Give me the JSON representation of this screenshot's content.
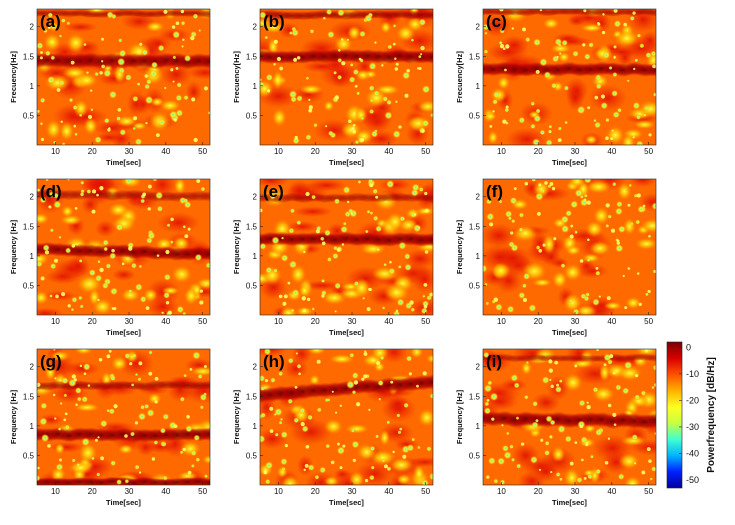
{
  "chart_data": {
    "type": "heatmap",
    "xlabel": "Time[sec]",
    "xlim": [
      5,
      52
    ],
    "xticks": [
      10,
      20,
      30,
      40,
      50
    ],
    "ylim": [
      0,
      2.3
    ],
    "yticks": [
      0.5,
      1,
      1.5,
      2
    ],
    "ytick_labels": [
      "0.5",
      "1",
      "1.5",
      "2"
    ],
    "colorbar": {
      "label": "Powerfrequency [dB/Hz]",
      "range": [
        -53,
        2
      ],
      "ticks": [
        0,
        -10,
        -20,
        -30,
        -40,
        -50
      ],
      "colors": [
        "#0000a0",
        "#0020ff",
        "#00b4ff",
        "#40ffd0",
        "#c8ff40",
        "#ffff20",
        "#ffb000",
        "#ff5000",
        "#d80000",
        "#7a0000"
      ]
    },
    "panels": [
      {
        "label": "(a)",
        "ylabel": "Frecuency[Hz]",
        "xlabel": "Time[sec]",
        "bands": [
          {
            "f_start": 1.42,
            "f_end": 1.42,
            "width": 0.1,
            "strength": 1.0
          },
          {
            "f_start": 2.22,
            "f_end": 2.22,
            "width": 0.05,
            "strength": 0.6
          }
        ]
      },
      {
        "label": "(b)",
        "ylabel": "Frecuency[Hz]",
        "xlabel": "Time[sec]",
        "bands": [
          {
            "f_start": 1.5,
            "f_end": 1.5,
            "width": 0.09,
            "strength": 1.0
          },
          {
            "f_start": 2.2,
            "f_end": 2.2,
            "width": 0.06,
            "strength": 0.7
          }
        ]
      },
      {
        "label": "(c)",
        "ylabel": "Frecuency[Hz]",
        "xlabel": "Time[sec]",
        "bands": [
          {
            "f_start": 1.28,
            "f_end": 1.28,
            "width": 0.09,
            "strength": 1.0
          },
          {
            "f_start": 2.25,
            "f_end": 2.25,
            "width": 0.05,
            "strength": 0.6
          }
        ]
      },
      {
        "label": "(d)",
        "ylabel": "Frequency [Hz]",
        "xlabel": "Time[sec]",
        "bands": [
          {
            "f_start": 1.12,
            "f_end": 1.02,
            "width": 0.09,
            "strength": 1.0
          },
          {
            "f_start": 2.05,
            "f_end": 2.0,
            "width": 0.07,
            "strength": 0.55
          }
        ]
      },
      {
        "label": "(e)",
        "ylabel": "Frequency [Hz]",
        "xlabel": "Time[sec]",
        "bands": [
          {
            "f_start": 1.28,
            "f_end": 1.28,
            "width": 0.09,
            "strength": 1.0
          },
          {
            "f_start": 1.98,
            "f_end": 1.98,
            "width": 0.06,
            "strength": 0.55
          }
        ]
      },
      {
        "label": "(f)",
        "ylabel": "Frequency [Hz]",
        "xlabel": "Time[sec]",
        "bands": []
      },
      {
        "label": "(g)",
        "ylabel": "Frequency [Hz]",
        "xlabel": "Time[sec]",
        "bands": [
          {
            "f_start": 0.85,
            "f_end": 0.85,
            "width": 0.09,
            "strength": 1.0
          },
          {
            "f_start": 1.68,
            "f_end": 1.68,
            "width": 0.06,
            "strength": 0.6
          },
          {
            "f_start": 0.05,
            "f_end": 0.05,
            "width": 0.06,
            "strength": 1.0
          }
        ]
      },
      {
        "label": "(h)",
        "ylabel": "Frequency [Hz]",
        "xlabel": "Time[sec]",
        "bands": [
          {
            "f_start": 1.52,
            "f_end": 1.75,
            "width": 0.1,
            "strength": 1.0
          }
        ]
      },
      {
        "label": "(i)",
        "ylabel": "Frequency [Hz]",
        "xlabel": "Time[sec]",
        "bands": [
          {
            "f_start": 1.12,
            "f_end": 1.08,
            "width": 0.1,
            "strength": 1.0
          },
          {
            "f_start": 2.15,
            "f_end": 2.15,
            "width": 0.05,
            "strength": 0.5
          }
        ]
      }
    ]
  }
}
